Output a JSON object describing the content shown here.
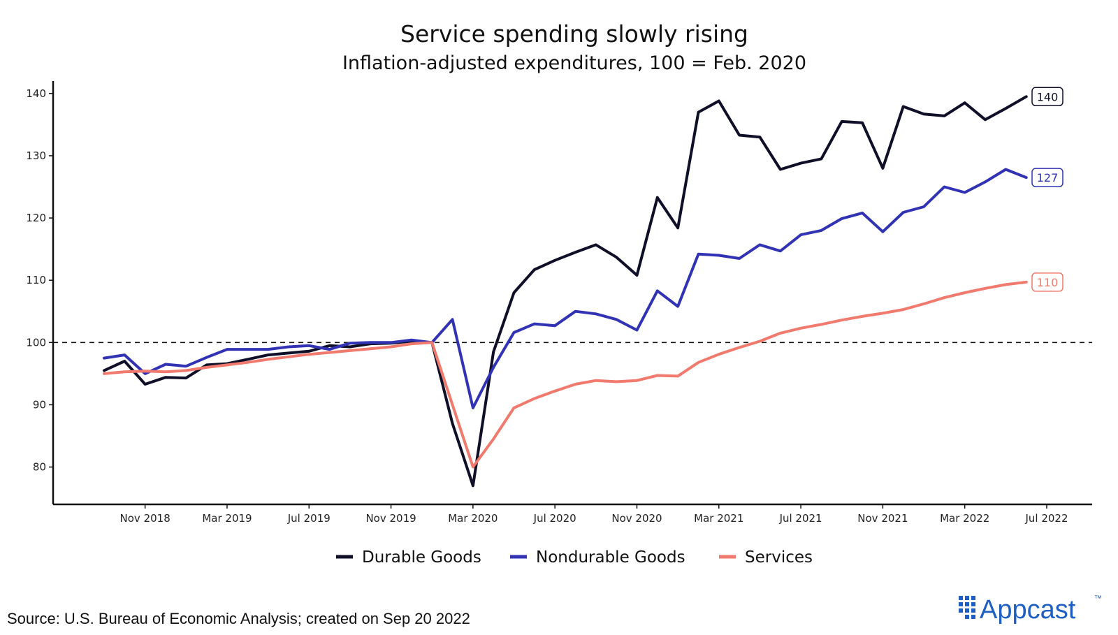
{
  "chart_data": {
    "type": "line",
    "title": "Service spending slowly rising",
    "subtitle": "Inflation-adjusted expenditures, 100 = Feb. 2020",
    "xlabel": "",
    "ylabel": "",
    "ylim": [
      74,
      142
    ],
    "yticks": [
      80,
      90,
      100,
      110,
      120,
      130,
      140
    ],
    "x_start": "2018-09",
    "x_end": "2022-07",
    "xticks": [
      {
        "date": "2018-11",
        "label": "Nov 2018"
      },
      {
        "date": "2019-03",
        "label": "Mar 2019"
      },
      {
        "date": "2019-07",
        "label": "Jul 2019"
      },
      {
        "date": "2019-11",
        "label": "Nov 2019"
      },
      {
        "date": "2020-03",
        "label": "Mar 2020"
      },
      {
        "date": "2020-07",
        "label": "Jul 2020"
      },
      {
        "date": "2020-11",
        "label": "Nov 2020"
      },
      {
        "date": "2021-03",
        "label": "Mar 2021"
      },
      {
        "date": "2021-07",
        "label": "Jul 2021"
      },
      {
        "date": "2021-11",
        "label": "Nov 2021"
      },
      {
        "date": "2022-03",
        "label": "Mar 2022"
      },
      {
        "date": "2022-07",
        "label": "Jul 2022"
      }
    ],
    "reference_line": {
      "y": 100,
      "style": "dashed"
    },
    "grid": false,
    "legend_position": "bottom",
    "series": [
      {
        "name": "Durable Goods",
        "color": "#0f0f28",
        "end_label": "140",
        "values": [
          95.5,
          97.0,
          93.3,
          94.4,
          94.3,
          96.4,
          96.6,
          97.3,
          98.0,
          98.3,
          98.6,
          99.5,
          99.3,
          99.8,
          99.9,
          100.2,
          100.0,
          87.0,
          77.0,
          98.5,
          108.0,
          111.7,
          113.2,
          114.5,
          115.7,
          113.7,
          110.8,
          123.3,
          118.4,
          137.0,
          138.8,
          133.3,
          133.0,
          127.8,
          128.8,
          129.5,
          135.5,
          135.3,
          128.0,
          137.9,
          136.7,
          136.4,
          138.5,
          135.8,
          137.6,
          139.5
        ]
      },
      {
        "name": "Nondurable Goods",
        "color": "#3133b4",
        "end_label": "127",
        "values": [
          97.5,
          98.0,
          95.0,
          96.5,
          96.2,
          97.6,
          98.9,
          98.9,
          98.9,
          99.3,
          99.5,
          98.9,
          99.9,
          100.0,
          100.0,
          100.4,
          100.0,
          103.7,
          89.5,
          96.0,
          101.6,
          103.0,
          102.7,
          105.0,
          104.6,
          103.7,
          102.0,
          108.3,
          105.8,
          114.2,
          114.0,
          113.5,
          115.7,
          114.7,
          117.3,
          118.0,
          119.9,
          120.8,
          117.8,
          120.9,
          121.8,
          125.0,
          124.1,
          125.8,
          127.8,
          126.5
        ]
      },
      {
        "name": "Services",
        "color": "#f07a6d",
        "end_label": "110",
        "values": [
          95.0,
          95.3,
          95.4,
          95.3,
          95.5,
          96.0,
          96.4,
          96.8,
          97.3,
          97.7,
          98.1,
          98.4,
          98.7,
          99.0,
          99.3,
          99.8,
          100.0,
          90.0,
          80.0,
          84.5,
          89.5,
          91.0,
          92.2,
          93.3,
          93.9,
          93.7,
          93.9,
          94.7,
          94.6,
          96.8,
          98.1,
          99.2,
          100.2,
          101.5,
          102.3,
          102.9,
          103.6,
          104.2,
          104.7,
          105.3,
          106.2,
          107.2,
          108.0,
          108.7,
          109.3,
          109.7
        ]
      }
    ]
  },
  "source_text": "Source: U.S. Bureau of Economic Analysis; created on Sep 20 2022",
  "brand": {
    "name": "Appcast",
    "trademark": "™",
    "color": "#1f5fc4"
  }
}
